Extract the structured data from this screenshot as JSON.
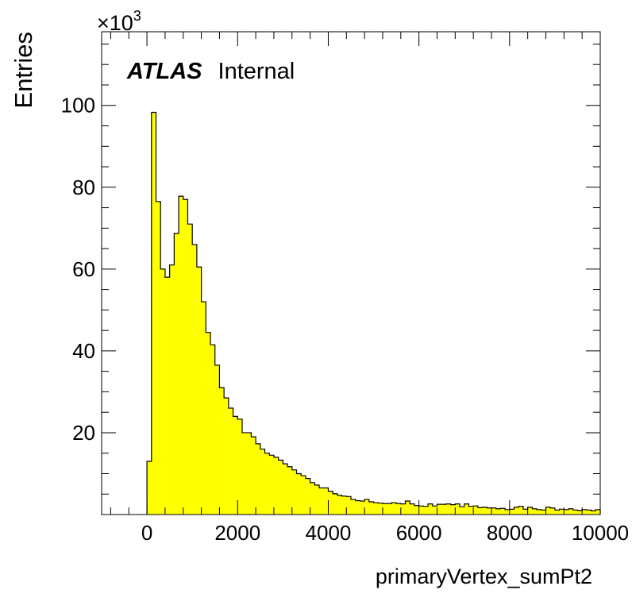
{
  "chart_data": {
    "type": "bar",
    "title": "",
    "xlabel": "primaryVertex_sumPt2",
    "ylabel": "Entries",
    "y_multiplier_label": "×10",
    "y_multiplier_exponent": "3",
    "xlim": [
      -1000,
      10000
    ],
    "ylim": [
      0,
      118
    ],
    "y_unit": "thousands of entries",
    "bin_width": 100,
    "x_ticks": [
      0,
      2000,
      4000,
      6000,
      8000,
      10000
    ],
    "x_tick_labels": [
      "0",
      "2000",
      "4000",
      "6000",
      "8000",
      "10000"
    ],
    "y_ticks": [
      20,
      40,
      60,
      80,
      100
    ],
    "y_tick_labels": [
      "20",
      "40",
      "60",
      "80",
      "100"
    ],
    "grid": false,
    "fill_color": "#ffff00",
    "line_color": "#000000",
    "annotations": [
      {
        "bold_italic": "ATLAS",
        "normal": "Internal"
      }
    ],
    "bin_low_edges": [
      0,
      100,
      200,
      300,
      400,
      500,
      600,
      700,
      800,
      900,
      1000,
      1100,
      1200,
      1300,
      1400,
      1500,
      1600,
      1700,
      1800,
      1900,
      2000,
      2100,
      2200,
      2300,
      2400,
      2500,
      2600,
      2700,
      2800,
      2900,
      3000,
      3100,
      3200,
      3300,
      3400,
      3500,
      3600,
      3700,
      3800,
      3900,
      4000,
      4100,
      4200,
      4300,
      4400,
      4500,
      4600,
      4700,
      4800,
      4900,
      5000,
      5100,
      5200,
      5300,
      5400,
      5500,
      5600,
      5700,
      5800,
      5900,
      6000,
      6100,
      6200,
      6300,
      6400,
      6500,
      6600,
      6700,
      6800,
      6900,
      7000,
      7100,
      7200,
      7300,
      7400,
      7500,
      7600,
      7700,
      7800,
      7900,
      8000,
      8100,
      8200,
      8300,
      8400,
      8500,
      8600,
      8700,
      8800,
      8900,
      9000,
      9100,
      9200,
      9300,
      9400,
      9500,
      9600,
      9700,
      9800,
      9900
    ],
    "values": [
      13,
      98.3,
      76.5,
      60,
      58,
      61,
      68.7,
      77.8,
      77,
      71,
      66,
      60.5,
      52,
      44.5,
      41.5,
      36.5,
      31,
      28.5,
      26,
      24,
      23.3,
      20,
      20,
      19,
      17.3,
      16,
      15,
      14.5,
      14,
      13.3,
      12.4,
      11.7,
      10.9,
      10,
      9.5,
      8.8,
      7.8,
      7.2,
      6.5,
      6.5,
      5.7,
      5.1,
      4.7,
      4.5,
      4.4,
      3.7,
      3.4,
      3.3,
      3.7,
      3.1,
      2.9,
      2.8,
      2.7,
      2.7,
      2.9,
      2.7,
      2.6,
      3.3,
      2.6,
      2.2,
      2.1,
      2.0,
      2.6,
      2.1,
      2.5,
      2.5,
      2.6,
      2.4,
      2.6,
      1.9,
      2.6,
      2.0,
      2.1,
      1.7,
      1.8,
      1.6,
      1.6,
      1.4,
      1.5,
      1.2,
      1.3,
      1.8,
      2.0,
      1.3,
      1.8,
      1.4,
      1.2,
      1.1,
      1.8,
      1.6,
      1.1,
      1.3,
      1.2,
      1.4,
      1.1,
      1.0,
      1.2,
      1.1,
      0.9,
      1.2
    ]
  }
}
